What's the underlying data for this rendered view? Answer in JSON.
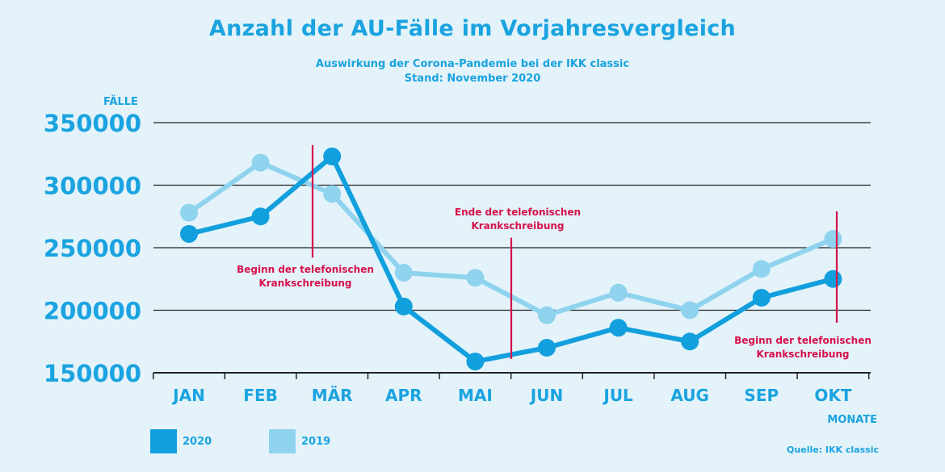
{
  "header": {
    "title": "Anzahl der AU-Fälle im Vorjahresvergleich",
    "subtitle_line1": "Auswirkung der Corona-Pandemie bei der IKK classic",
    "subtitle_line2": "Stand: November 2020"
  },
  "legend": [
    {
      "label": "2020",
      "color": "#129fdd"
    },
    {
      "label": "2019",
      "color": "#8fd3ee"
    }
  ],
  "source": "Quelle: IKK classic",
  "colors": {
    "axis_text": "#1aa3e0",
    "grid": "#222222",
    "annotation": "#d6114b"
  },
  "chart_data": {
    "type": "line",
    "ylabel": "FÄLLE",
    "xlabel": "MONATE",
    "ylim": [
      150000,
      350000
    ],
    "yticks": [
      150000,
      200000,
      250000,
      300000,
      350000
    ],
    "grid": true,
    "categories": [
      "JAN",
      "FEB",
      "MÄR",
      "APR",
      "MAI",
      "JUN",
      "JUL",
      "AUG",
      "SEP",
      "OKT"
    ],
    "series": [
      {
        "name": "2019",
        "color": "#8fd3ee",
        "values": [
          278000,
          318000,
          293000,
          230000,
          226000,
          196000,
          214000,
          200000,
          233000,
          257000
        ]
      },
      {
        "name": "2020",
        "color": "#129fdd",
        "values": [
          261000,
          275000,
          323000,
          203000,
          159000,
          170000,
          186000,
          175000,
          210000,
          225000
        ]
      }
    ],
    "annotations": [
      {
        "text_line1": "Beginn der telefonischen",
        "text_line2": "Krankschreibung",
        "x_between": [
          "FEB",
          "MÄR"
        ],
        "y_range": [
          242000,
          332000
        ]
      },
      {
        "text_line1": "Ende der telefonischen",
        "text_line2": "Krankschreibung",
        "x_between": [
          "MAI",
          "JUN"
        ],
        "y_range": [
          161000,
          258000
        ]
      },
      {
        "text_line1": "Beginn der telefonischen",
        "text_line2": "Krankschreibung",
        "x_between": [
          "SEP",
          "OKT"
        ],
        "y_range": [
          190000,
          279000
        ]
      }
    ]
  }
}
